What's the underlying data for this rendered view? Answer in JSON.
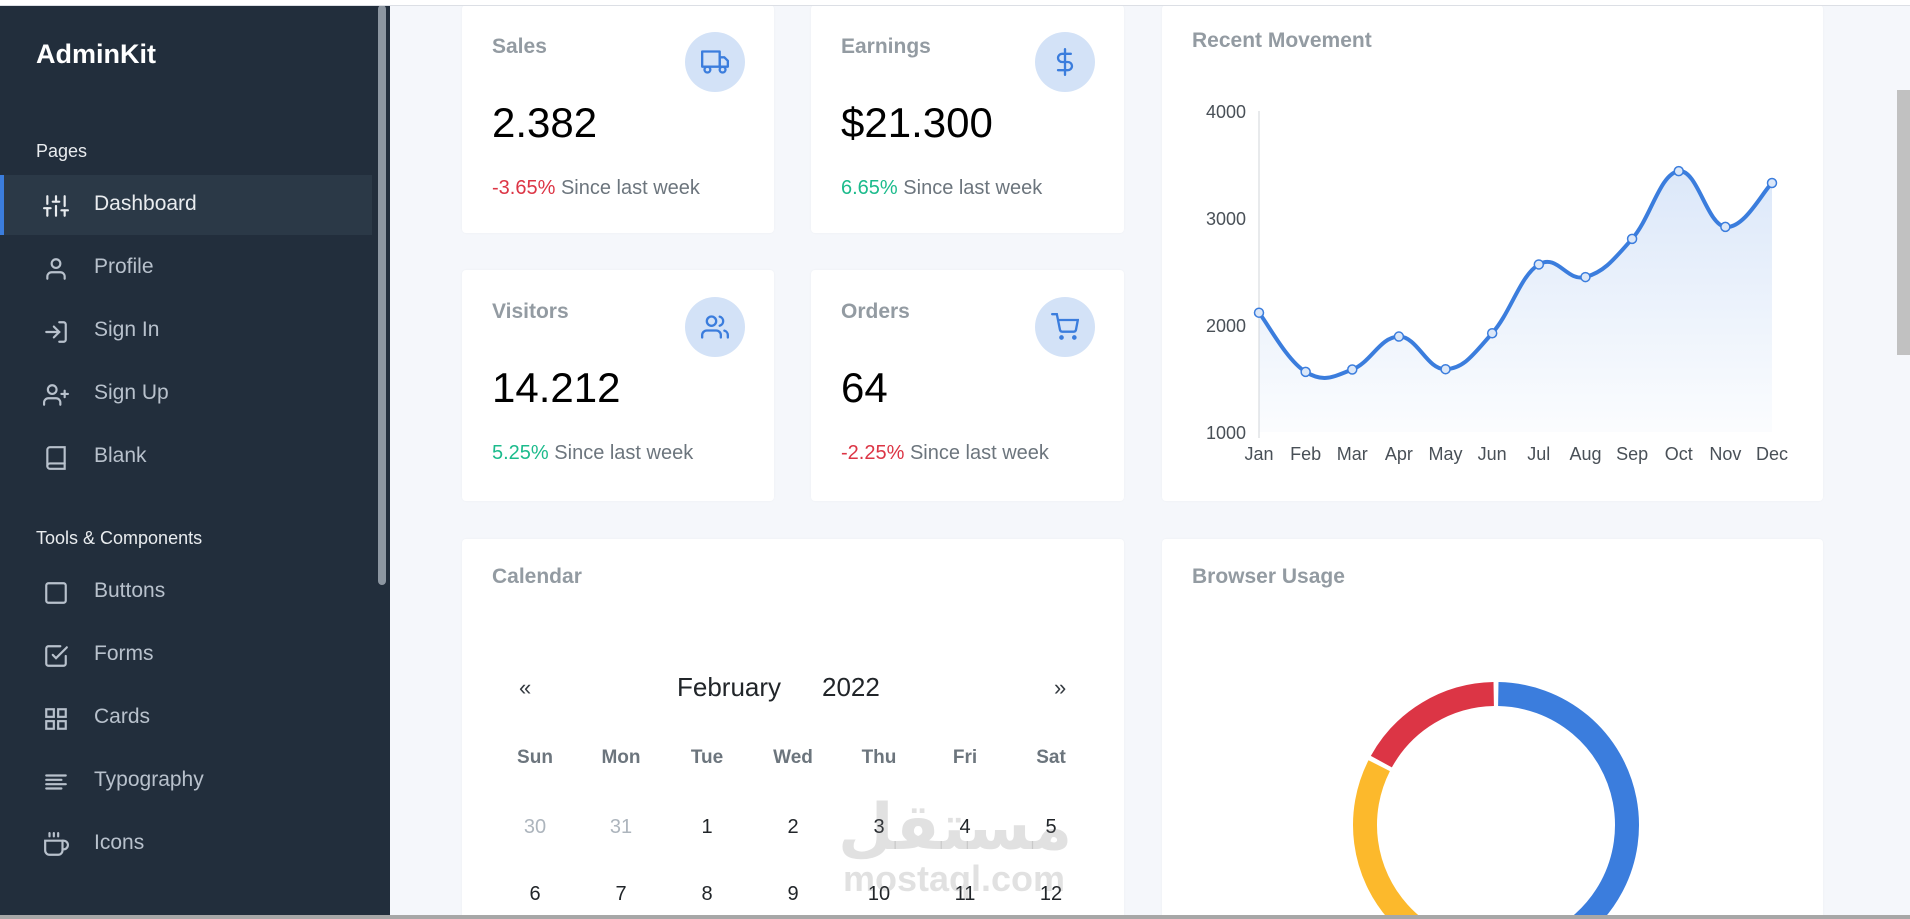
{
  "sidebar": {
    "brand": "AdminKit",
    "sections": [
      {
        "header": "Pages",
        "items": [
          {
            "label": "Dashboard",
            "icon": "sliders-icon",
            "active": true
          },
          {
            "label": "Profile",
            "icon": "user-icon"
          },
          {
            "label": "Sign In",
            "icon": "log-in-icon"
          },
          {
            "label": "Sign Up",
            "icon": "user-plus-icon"
          },
          {
            "label": "Blank",
            "icon": "book-icon"
          }
        ]
      },
      {
        "header": "Tools & Components",
        "items": [
          {
            "label": "Buttons",
            "icon": "square-icon"
          },
          {
            "label": "Forms",
            "icon": "check-square-icon"
          },
          {
            "label": "Cards",
            "icon": "grid-icon"
          },
          {
            "label": "Typography",
            "icon": "align-left-icon"
          },
          {
            "label": "Icons",
            "icon": "coffee-icon"
          }
        ]
      }
    ]
  },
  "stats": {
    "sales": {
      "title": "Sales",
      "value": "2.382",
      "change": "-3.65%",
      "since": "Since last week",
      "icon": "truck-icon"
    },
    "earnings": {
      "title": "Earnings",
      "value": "$21.300",
      "change": "6.65%",
      "since": "Since last week",
      "icon": "dollar-sign-icon"
    },
    "visitors": {
      "title": "Visitors",
      "value": "14.212",
      "change": "5.25%",
      "since": "Since last week",
      "icon": "users-icon"
    },
    "orders": {
      "title": "Orders",
      "value": "64",
      "change": "-2.25%",
      "since": "Since last week",
      "icon": "shopping-cart-icon"
    }
  },
  "movement": {
    "title": "Recent Movement"
  },
  "calendar": {
    "title": "Calendar",
    "prev": "«",
    "next": "»",
    "month": "February",
    "year": "2022",
    "weekdays": [
      "Sun",
      "Mon",
      "Tue",
      "Wed",
      "Thu",
      "Fri",
      "Sat"
    ],
    "weeks": [
      [
        {
          "d": "30",
          "muted": true
        },
        {
          "d": "31",
          "muted": true
        },
        {
          "d": "1"
        },
        {
          "d": "2"
        },
        {
          "d": "3"
        },
        {
          "d": "4"
        },
        {
          "d": "5"
        }
      ],
      [
        {
          "d": "6"
        },
        {
          "d": "7"
        },
        {
          "d": "8"
        },
        {
          "d": "9"
        },
        {
          "d": "10"
        },
        {
          "d": "11"
        },
        {
          "d": "12"
        }
      ]
    ]
  },
  "browser": {
    "title": "Browser Usage"
  },
  "watermark": {
    "arabic": "مستقل",
    "latin": "mostaql.com"
  },
  "colors": {
    "sidebar": "#222e3c",
    "accent": "#3b7ddd",
    "negative": "#dc3545",
    "positive": "#1cbb8c",
    "icon_bg": "#d3e2f7",
    "warning": "#fcb92c",
    "danger": "#dc3545",
    "primary": "#3b7ddd"
  },
  "chart_data": [
    {
      "type": "area",
      "title": "Recent Movement",
      "categories": [
        "Jan",
        "Feb",
        "Mar",
        "Apr",
        "May",
        "Jun",
        "Jul",
        "Aug",
        "Sep",
        "Oct",
        "Nov",
        "Dec"
      ],
      "values": [
        2115,
        1562,
        1584,
        1892,
        1587,
        1923,
        2566,
        2448,
        2805,
        3438,
        2917,
        3327
      ],
      "yticks": [
        1000,
        2000,
        3000,
        4000
      ],
      "ylim": [
        1000,
        4000
      ],
      "xlabel": "",
      "ylabel": "",
      "grid": false,
      "legend": "none"
    },
    {
      "type": "pie",
      "title": "Browser Usage",
      "style": "doughnut",
      "slices": [
        {
          "value": 4306,
          "color": "#3b7ddd"
        },
        {
          "value": 3801,
          "color": "#fcb92c"
        },
        {
          "value": 1689,
          "color": "#dc3545"
        }
      ],
      "legend": "none"
    }
  ]
}
